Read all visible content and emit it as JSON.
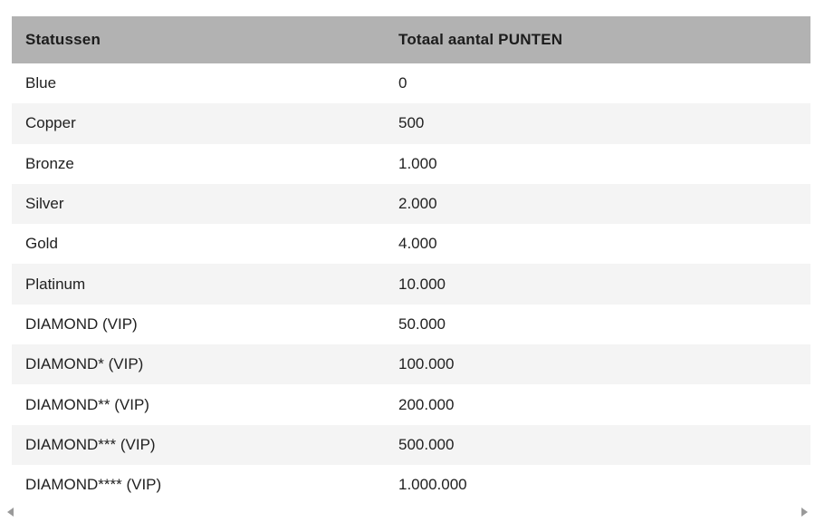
{
  "table": {
    "columns": [
      {
        "key": "status",
        "label": "Statussen"
      },
      {
        "key": "points",
        "label": "Totaal aantal PUNTEN"
      }
    ],
    "rows": [
      {
        "status": "Blue",
        "points": "0"
      },
      {
        "status": "Copper",
        "points": "500"
      },
      {
        "status": "Bronze",
        "points": "1.000"
      },
      {
        "status": "Silver",
        "points": "2.000"
      },
      {
        "status": "Gold",
        "points": "4.000"
      },
      {
        "status": "Platinum",
        "points": "10.000"
      },
      {
        "status": "DIAMOND (VIP)",
        "points": "50.000"
      },
      {
        "status": "DIAMOND* (VIP)",
        "points": "100.000"
      },
      {
        "status": "DIAMOND** (VIP)",
        "points": "200.000"
      },
      {
        "status": "DIAMOND*** (VIP)",
        "points": "500.000"
      },
      {
        "status": "DIAMOND**** (VIP)",
        "points": "1.000.000"
      }
    ]
  },
  "scroll_hints": {
    "left_icon": "scroll-left",
    "right_icon": "scroll-right"
  },
  "colors": {
    "header_bg": "#b2b2b2",
    "header_text": "#1c1c1c",
    "stripe_bg": "#f4f4f4",
    "row_text": "#212121",
    "arrow": "#9a9a9a"
  }
}
